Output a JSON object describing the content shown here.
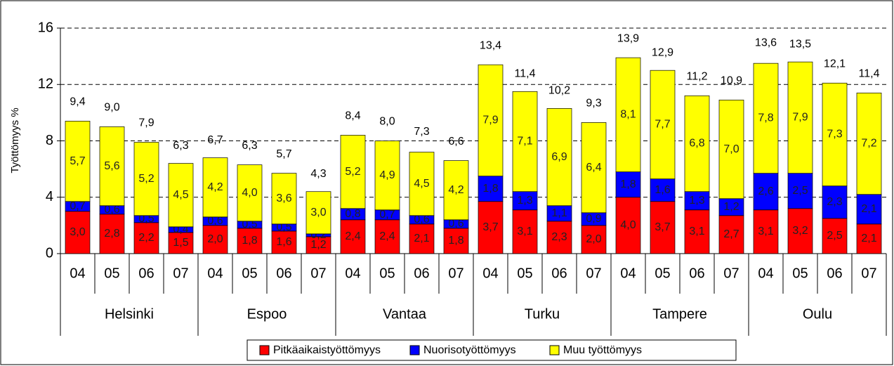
{
  "chart_data": {
    "type": "stacked_bar",
    "y_label": "Työttömyys %",
    "groups": [
      "Helsinki",
      "Espoo",
      "Vantaa",
      "Turku",
      "Tampere",
      "Oulu"
    ],
    "categories": [
      "04",
      "05",
      "06",
      "07",
      "04",
      "05",
      "06",
      "07",
      "04",
      "05",
      "06",
      "07",
      "04",
      "05",
      "06",
      "07",
      "04",
      "05",
      "06",
      "07",
      "04",
      "05",
      "06",
      "07"
    ],
    "series": [
      {
        "name": "Pitkäaikaistyöttömyys",
        "color": "#ff0000",
        "values": [
          3.0,
          2.8,
          2.2,
          1.5,
          2.0,
          1.8,
          1.6,
          1.2,
          2.4,
          2.4,
          2.1,
          1.8,
          3.7,
          3.1,
          2.3,
          2.0,
          4.0,
          3.7,
          3.1,
          2.7,
          3.1,
          3.2,
          2.5,
          2.1
        ],
        "value_labels": [
          "3,0",
          "2,8",
          "2,2",
          "1,5",
          "2,0",
          "1,8",
          "1,6",
          "1,2",
          "2,4",
          "2,4",
          "2,1",
          "1,8",
          "3,7",
          "3,1",
          "2,3",
          "2,0",
          "4,0",
          "3,7",
          "3,1",
          "2,7",
          "3,1",
          "3,2",
          "2,5",
          "2,1"
        ]
      },
      {
        "name": "Nuorisotyöttömyys",
        "color": "#0000ff",
        "values": [
          0.7,
          0.6,
          0.5,
          0.4,
          0.6,
          0.5,
          0.5,
          0.2,
          0.8,
          0.7,
          0.6,
          0.6,
          1.8,
          1.3,
          1.1,
          0.9,
          1.8,
          1.6,
          1.3,
          1.2,
          2.6,
          2.5,
          2.3,
          2.1
        ],
        "value_labels": [
          "0,7",
          "0,6",
          "0,5",
          "0,4",
          "0,6",
          "0,5",
          "0,5",
          "0,2",
          "0,8",
          "0,7",
          "0,6",
          "0,6",
          "1,8",
          "1,3",
          "1,1",
          "0,9",
          "1,8",
          "1,6",
          "1,3",
          "1,2",
          "2,6",
          "2,5",
          "2,3",
          "2,1"
        ]
      },
      {
        "name": "Muu työttömyys",
        "color": "#ffff00",
        "values": [
          5.7,
          5.6,
          5.2,
          4.5,
          4.2,
          4.0,
          3.6,
          3.0,
          5.2,
          4.9,
          4.5,
          4.2,
          7.9,
          7.1,
          6.9,
          6.4,
          8.1,
          7.7,
          6.8,
          7.0,
          7.8,
          7.9,
          7.3,
          7.2
        ],
        "value_labels": [
          "5,7",
          "5,6",
          "5,2",
          "4,5",
          "4,2",
          "4,0",
          "3,6",
          "3,0",
          "5,2",
          "4,9",
          "4,5",
          "4,2",
          "7,9",
          "7,1",
          "6,9",
          "6,4",
          "8,1",
          "7,7",
          "6,8",
          "7,0",
          "7,8",
          "7,9",
          "7,3",
          "7,2"
        ]
      }
    ],
    "totals": {
      "values": [
        9.4,
        9.0,
        7.9,
        6.3,
        6.7,
        6.3,
        5.7,
        4.3,
        8.4,
        8.0,
        7.3,
        6.6,
        13.4,
        11.4,
        10.2,
        9.3,
        13.9,
        12.9,
        11.2,
        10.9,
        13.6,
        13.5,
        12.1,
        11.4
      ],
      "value_labels": [
        "9,4",
        "9,0",
        "7,9",
        "6,3",
        "6,7",
        "6,3",
        "5,7",
        "4,3",
        "8,4",
        "8,0",
        "7,3",
        "6,6",
        "13,4",
        "11,4",
        "10,2",
        "9,3",
        "13,9",
        "12,9",
        "11,2",
        "10,9",
        "13,6",
        "13,5",
        "12,1",
        "11,4"
      ]
    },
    "ylim": [
      0,
      16
    ],
    "yticks": [
      0,
      4,
      8,
      12,
      16
    ],
    "grid": true,
    "legend": "bottom"
  }
}
